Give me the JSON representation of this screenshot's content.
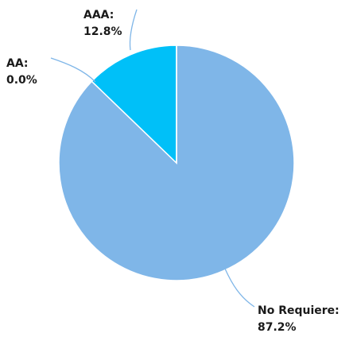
{
  "chart_data": {
    "type": "pie",
    "title": "",
    "categories": [
      "No Requiere",
      "AAA",
      "AA"
    ],
    "values": [
      87.2,
      12.8,
      0.0
    ],
    "colors": [
      "#7fb6e8",
      "#00c0f8",
      "#1a9fd8"
    ],
    "stroke_color": "#ffffff",
    "leader_color": "#7fb6e8",
    "labels": [
      {
        "category": "AAA",
        "name": "AAA:",
        "pct": "12.8%"
      },
      {
        "category": "AA",
        "name": "AA:",
        "pct": "0.0%"
      },
      {
        "category": "No Requiere",
        "name": "No Requiere:",
        "pct": "87.2%"
      }
    ],
    "legend": "none"
  }
}
